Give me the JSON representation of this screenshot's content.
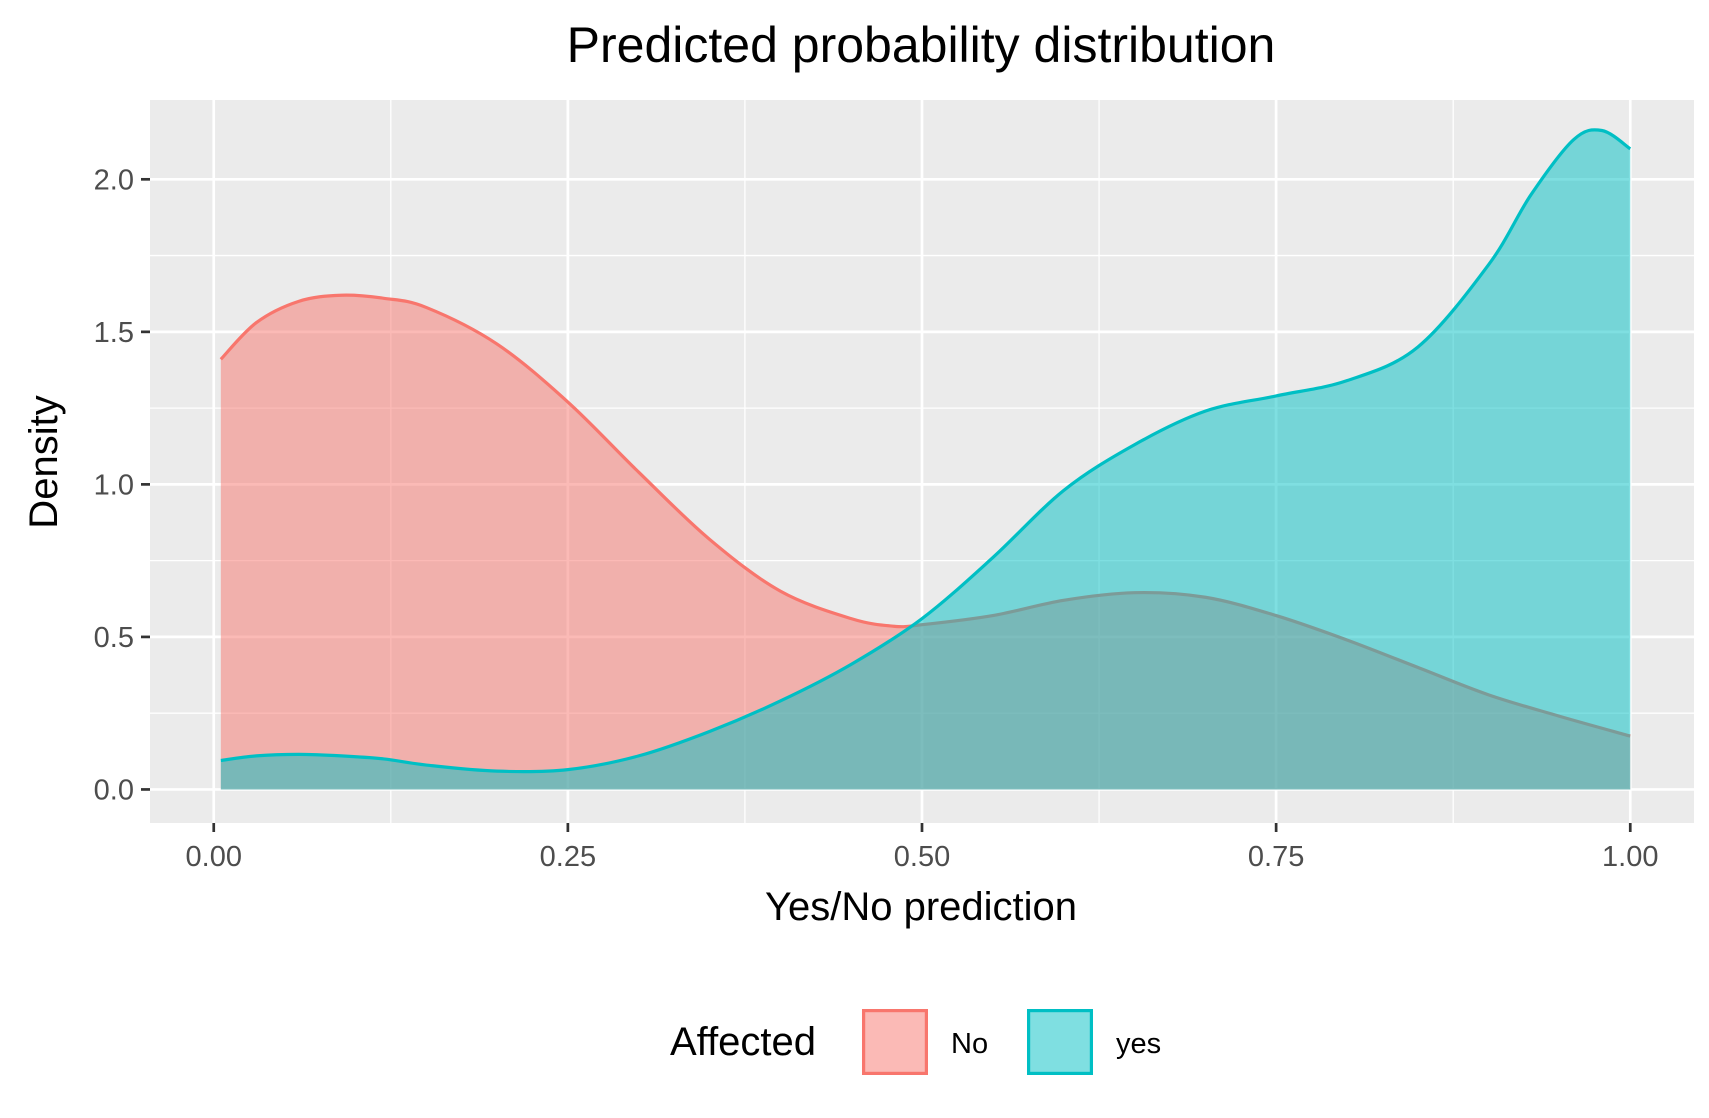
{
  "chart_data": {
    "type": "area",
    "title": "Predicted probability distribution",
    "xlabel": "Yes/No prediction",
    "ylabel": "Density",
    "xlim": [
      -0.045,
      1.045
    ],
    "ylim": [
      -0.11,
      2.26
    ],
    "x_ticks": [
      0,
      0.25,
      0.5,
      0.75,
      1
    ],
    "x_tick_labels": [
      "0.00",
      "0.25",
      "0.50",
      "0.75",
      "1.00"
    ],
    "y_ticks": [
      0,
      0.5,
      1,
      1.5,
      2
    ],
    "y_tick_labels": [
      "0.0",
      "0.5",
      "1.0",
      "1.5",
      "2.0"
    ],
    "grid": true,
    "legend": {
      "title": "Affected",
      "position": "bottom"
    },
    "series": [
      {
        "name": "No",
        "color": "#f8766d",
        "fill_opacity": 0.5,
        "x": [
          0.005,
          0.03,
          0.06,
          0.09,
          0.12,
          0.15,
          0.2,
          0.25,
          0.3,
          0.35,
          0.4,
          0.45,
          0.48,
          0.5,
          0.55,
          0.6,
          0.65,
          0.7,
          0.75,
          0.8,
          0.85,
          0.9,
          0.95,
          1.0
        ],
        "y": [
          1.41,
          1.53,
          1.6,
          1.62,
          1.61,
          1.58,
          1.46,
          1.27,
          1.04,
          0.82,
          0.65,
          0.56,
          0.535,
          0.54,
          0.57,
          0.62,
          0.645,
          0.63,
          0.57,
          0.49,
          0.4,
          0.31,
          0.24,
          0.175
        ]
      },
      {
        "name": "yes",
        "color": "#00bfc4",
        "fill_opacity": 0.5,
        "x": [
          0.005,
          0.03,
          0.06,
          0.09,
          0.12,
          0.15,
          0.2,
          0.25,
          0.3,
          0.35,
          0.4,
          0.45,
          0.5,
          0.55,
          0.6,
          0.65,
          0.7,
          0.75,
          0.8,
          0.85,
          0.9,
          0.93,
          0.96,
          0.98,
          1.0
        ],
        "y": [
          0.095,
          0.11,
          0.115,
          0.11,
          0.1,
          0.08,
          0.06,
          0.065,
          0.11,
          0.19,
          0.29,
          0.41,
          0.56,
          0.76,
          0.98,
          1.13,
          1.24,
          1.29,
          1.34,
          1.45,
          1.72,
          1.95,
          2.13,
          2.16,
          2.1
        ]
      }
    ]
  }
}
